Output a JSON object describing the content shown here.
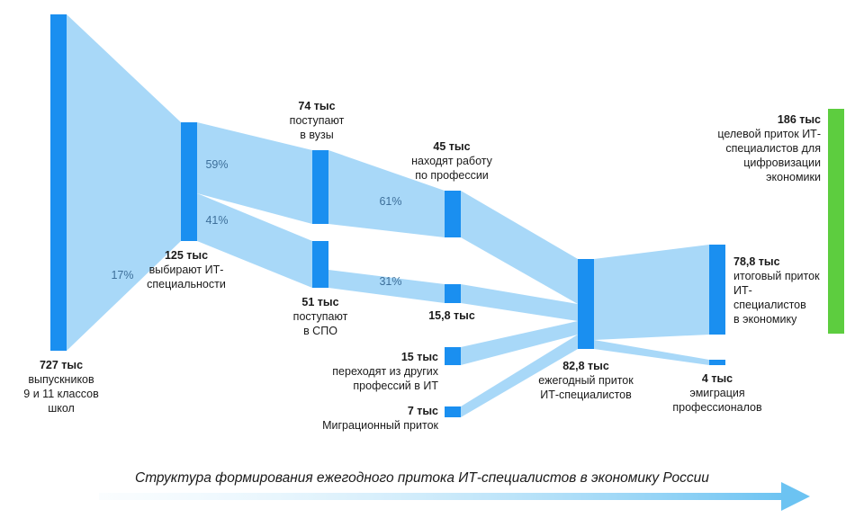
{
  "nodes": {
    "graduates": {
      "value": "727 тыс",
      "desc": [
        "выпускников",
        "9 и 11 классов",
        "школ"
      ]
    },
    "it_choice": {
      "value": "125 тыс",
      "desc": [
        "выбирают ИТ-",
        "специальности"
      ]
    },
    "university": {
      "value": "74 тыс",
      "desc": [
        "поступают",
        "в вузы"
      ]
    },
    "college": {
      "value": "51 тыс",
      "desc": [
        "поступают",
        "в СПО"
      ]
    },
    "employed": {
      "value": "45 тыс",
      "desc": [
        "находят работу",
        "по профессии"
      ]
    },
    "college_it": {
      "value": "15,8 тыс",
      "desc": []
    },
    "switchers": {
      "value": "15 тыс",
      "desc": [
        "переходят из других",
        "профессий в ИТ"
      ]
    },
    "migration": {
      "value": "7 тыс",
      "desc": [
        "Миграционный приток"
      ]
    },
    "annual": {
      "value": "82,8 тыс",
      "desc": [
        "ежегодный приток",
        "ИТ-специалистов"
      ]
    },
    "final": {
      "value": "78,8 тыс",
      "desc": [
        "итоговый приток",
        "ИТ-",
        "специалистов",
        "в экономику"
      ]
    },
    "emigration": {
      "value": "4 тыс",
      "desc": [
        "эмиграция",
        "профессионалов"
      ]
    },
    "target": {
      "value": "186 тыс",
      "desc": [
        "целевой приток ИТ-",
        "специалистов для",
        "цифровизации",
        "экономики"
      ]
    }
  },
  "percentages": {
    "p17": "17%",
    "p59": "59%",
    "p41": "41%",
    "p61": "61%",
    "p31": "31%"
  },
  "caption": "Структура формирования ежегодного притока ИТ-специалистов в экономику России",
  "colors": {
    "node": "#1a8ff0",
    "flow": "#a8d8f8",
    "target": "#5dcd3f",
    "arrow": "#6cc3f2"
  }
}
